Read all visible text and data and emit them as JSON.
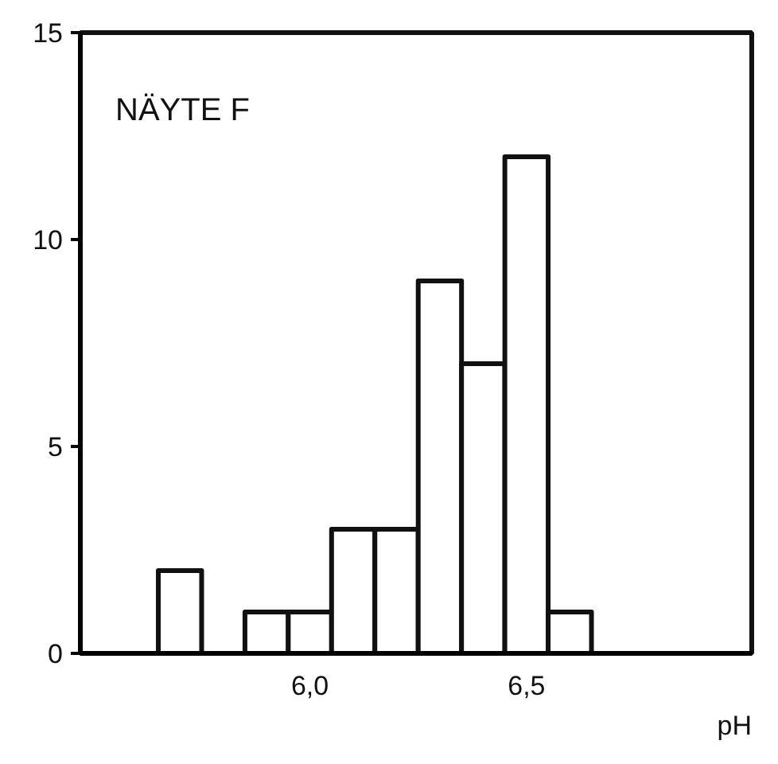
{
  "chart_data": {
    "type": "histogram",
    "title": "NÄYTE F",
    "xlabel": "pH",
    "bins": [
      5.65,
      5.75,
      5.85,
      5.95,
      6.05,
      6.15,
      6.25,
      6.35,
      6.45,
      6.55,
      6.65
    ],
    "values": [
      2,
      0,
      1,
      1,
      3,
      3,
      9,
      7,
      12,
      1
    ],
    "color": "#ffffff",
    "xlim": [
      5.47,
      7.02
    ],
    "ylim": [
      0,
      15
    ],
    "xticks": [
      {
        "value": 6.0,
        "label": "6,0"
      },
      {
        "value": 6.5,
        "label": "6,5"
      }
    ],
    "yticks": [
      0,
      5,
      10,
      15
    ],
    "grid": false
  }
}
